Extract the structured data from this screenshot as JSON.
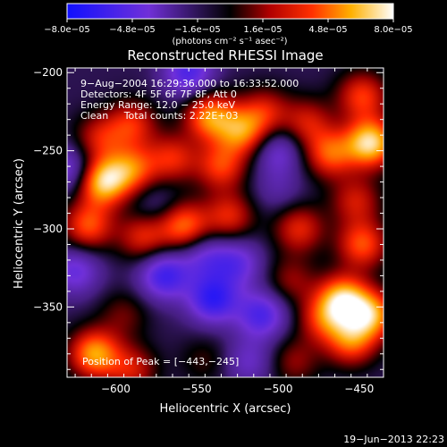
{
  "chart_data": {
    "type": "heatmap",
    "title": "Reconstructed RHESSI Image",
    "xlabel": "Heliocentric X (arcsec)",
    "ylabel": "Heliocentric Y (arcsec)",
    "xlim": [
      -630,
      -435
    ],
    "ylim": [
      -395,
      -197
    ],
    "xticks": [
      -600,
      -550,
      -500,
      -450
    ],
    "yticks": [
      -350,
      -300,
      -250,
      -200
    ],
    "xtick_labels": [
      "−600",
      "−550",
      "−500",
      "−450"
    ],
    "ytick_labels": [
      "−350",
      "−300",
      "−250",
      "−200"
    ],
    "colorbar": {
      "min": -8e-05,
      "max": 8e-05,
      "ticks": [
        -8e-05,
        -4.8e-05,
        -1.6e-05,
        1.6e-05,
        4.8e-05,
        8e-05
      ],
      "tick_labels": [
        "−8.0e−05",
        "−4.8e−05",
        "−1.6e−05",
        "1.6e−05",
        "4.8e−05",
        "8.0e−05"
      ],
      "units": "(photons cm⁻² s⁻¹ asec⁻²)"
    },
    "annotations": [
      "9−Aug−2004 16:29:36.000 to 16:33:52.000",
      "Detectors: 4F 5F 6F 7F 8F, Att 0",
      "Energy Range: 12.0 − 25.0 keV",
      "Clean     Total counts: 2.22E+03"
    ],
    "peak_label": "Position of Peak = [−443,−245]",
    "peak": [
      -443,
      -245
    ],
    "timestamp": "19−Jun−2013 22:23",
    "sources": [
      {
        "x": -542,
        "y": -228,
        "flux": 6e-05
      },
      {
        "x": -522,
        "y": -238,
        "flux": 5.5e-05
      },
      {
        "x": -590,
        "y": -233,
        "flux": 4e-05
      },
      {
        "x": -610,
        "y": -242,
        "flux": 3.5e-05
      },
      {
        "x": -608,
        "y": -270,
        "flux": 7.5e-05
      },
      {
        "x": -590,
        "y": -262,
        "flux": 5e-05
      },
      {
        "x": -565,
        "y": -255,
        "flux": 4e-05
      },
      {
        "x": -617,
        "y": -298,
        "flux": 5e-05
      },
      {
        "x": -583,
        "y": -305,
        "flux": 4e-05
      },
      {
        "x": -558,
        "y": -298,
        "flux": 5.5e-05
      },
      {
        "x": -530,
        "y": -292,
        "flux": 4e-05
      },
      {
        "x": -535,
        "y": -260,
        "flux": 4.5e-05
      },
      {
        "x": -508,
        "y": -225,
        "flux": 3.5e-05
      },
      {
        "x": -482,
        "y": -232,
        "flux": 3.5e-05
      },
      {
        "x": -468,
        "y": -252,
        "flux": 5e-05
      },
      {
        "x": -443,
        "y": -245,
        "flux": 8e-05
      },
      {
        "x": -448,
        "y": -215,
        "flux": 4.5e-05
      },
      {
        "x": -452,
        "y": -282,
        "flux": 3.5e-05
      },
      {
        "x": -487,
        "y": -300,
        "flux": 4e-05
      },
      {
        "x": -448,
        "y": -310,
        "flux": 5e-05
      },
      {
        "x": -492,
        "y": -333,
        "flux": 2.5e-05
      },
      {
        "x": -460,
        "y": -345,
        "flux": 7e-05
      },
      {
        "x": -443,
        "y": -355,
        "flux": 6.5e-05
      },
      {
        "x": -455,
        "y": -372,
        "flux": 5e-05
      },
      {
        "x": -472,
        "y": -358,
        "flux": 4e-05
      },
      {
        "x": -490,
        "y": -385,
        "flux": 2.5e-05
      },
      {
        "x": -613,
        "y": -380,
        "flux": 6.5e-05
      },
      {
        "x": -590,
        "y": -390,
        "flux": 3.5e-05
      },
      {
        "x": -595,
        "y": -355,
        "flux": 2e-05
      },
      {
        "x": -545,
        "y": -384,
        "flux": 1.5e-05
      },
      {
        "x": -570,
        "y": -330,
        "flux": -5e-05
      },
      {
        "x": -540,
        "y": -345,
        "flux": -5.5e-05
      },
      {
        "x": -510,
        "y": -355,
        "flux": -4.5e-05
      },
      {
        "x": -555,
        "y": -200,
        "flux": -4.5e-05
      },
      {
        "x": -628,
        "y": -262,
        "flux": -3.5e-05
      },
      {
        "x": -625,
        "y": -327,
        "flux": -3.5e-05
      },
      {
        "x": -525,
        "y": -322,
        "flux": -3.5e-05
      },
      {
        "x": -545,
        "y": -318,
        "flux": -3e-05
      },
      {
        "x": -500,
        "y": -250,
        "flux": -3e-05
      },
      {
        "x": -518,
        "y": -385,
        "flux": -2.5e-05
      },
      {
        "x": -575,
        "y": -285,
        "flux": -1.5e-05
      },
      {
        "x": -500,
        "y": -275,
        "flux": -1.5e-05
      }
    ]
  }
}
